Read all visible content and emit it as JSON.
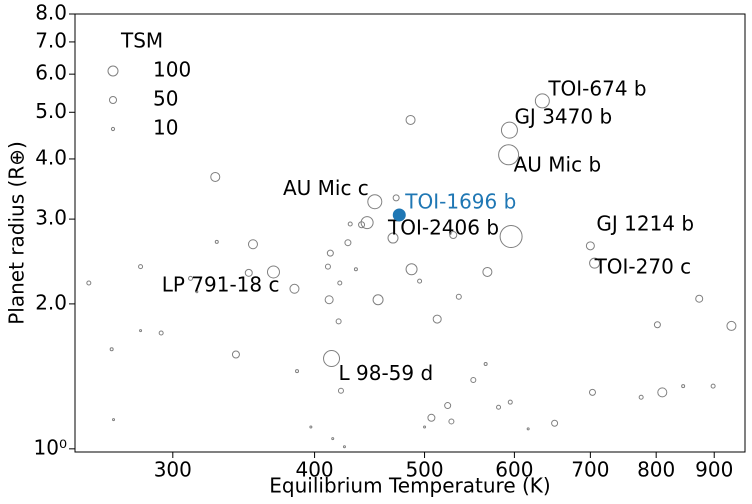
{
  "chart_data": {
    "type": "scatter",
    "x_label": "Equilibrium Temperature (K)",
    "y_label": "Planet radius (R⊕)",
    "log_x": true,
    "log_y": true,
    "grid": false,
    "xlim": [
      246,
      958
    ],
    "ylim": [
      0.985,
      8.0
    ],
    "xticks": [
      300,
      400,
      500,
      600,
      700,
      800,
      900
    ],
    "yticks": [
      {
        "value": 1,
        "label": "10⁰"
      },
      {
        "value": 2,
        "label": "2.0"
      },
      {
        "value": 3,
        "label": "3.0"
      },
      {
        "value": 4,
        "label": "4.0"
      },
      {
        "value": 5,
        "label": "5.0"
      },
      {
        "value": 6,
        "label": "6.0"
      },
      {
        "value": 7,
        "label": "7.0"
      },
      {
        "value": 8,
        "label": "8.0"
      }
    ],
    "edgecolor": "#808080",
    "x": [
      253,
      265,
      266,
      281,
      281,
      293,
      311,
      315,
      327,
      328,
      341,
      350,
      353,
      368,
      384,
      386,
      397,
      411,
      412,
      413,
      414,
      415,
      420,
      421,
      422,
      425,
      428,
      430,
      435,
      440,
      445,
      452,
      455,
      469,
      472,
      486,
      487,
      495,
      500,
      507,
      513,
      524,
      528,
      530,
      536,
      552,
      566,
      568,
      581,
      594,
      593,
      595,
      596,
      617,
      635,
      651,
      700,
      703,
      706,
      776,
      802,
      810,
      845,
      873,
      898,
      932
    ],
    "y": [
      2.21,
      1.61,
      1.15,
      2.39,
      1.76,
      1.74,
      2.26,
      2.12,
      3.67,
      2.69,
      1.57,
      2.32,
      2.66,
      2.33,
      2.15,
      1.45,
      1.11,
      2.39,
      2.04,
      2.55,
      1.54,
      1.05,
      1.84,
      2.21,
      1.32,
      1.01,
      2.68,
      2.93,
      2.36,
      2.92,
      2.95,
      3.26,
      2.04,
      2.74,
      3.32,
      4.82,
      2.36,
      2.23,
      1.11,
      1.16,
      1.86,
      1.23,
      1.14,
      2.78,
      2.07,
      1.39,
      1.5,
      2.33,
      1.22,
      4.59,
      4.08,
      1.25,
      2.76,
      1.1,
      5.28,
      1.13,
      2.64,
      1.31,
      2.43,
      1.28,
      1.81,
      1.31,
      1.35,
      2.05,
      1.35,
      1.8
    ],
    "sizes": [
      16,
      9,
      4,
      16,
      4,
      16,
      16,
      4,
      81,
      9,
      49,
      49,
      81,
      144,
      81,
      9,
      4,
      25,
      64,
      36,
      256,
      4,
      25,
      16,
      25,
      4,
      36,
      16,
      9,
      36,
      144,
      196,
      100,
      100,
      36,
      81,
      121,
      16,
      4,
      49,
      64,
      36,
      25,
      49,
      25,
      25,
      9,
      81,
      16,
      256,
      400,
      16,
      484,
      4,
      196,
      36,
      64,
      36,
      100,
      16,
      36,
      81,
      9,
      49,
      16,
      81
    ],
    "labels": [
      null,
      null,
      null,
      null,
      null,
      null,
      null,
      null,
      null,
      null,
      null,
      null,
      null,
      "LP 791-18 c",
      null,
      null,
      null,
      null,
      null,
      null,
      "L 98-59 d",
      null,
      null,
      null,
      null,
      null,
      null,
      null,
      null,
      null,
      null,
      "AU Mic c",
      null,
      "TOI-2406 b",
      null,
      null,
      null,
      null,
      null,
      null,
      null,
      null,
      null,
      null,
      null,
      null,
      null,
      null,
      null,
      "GJ 3470 b",
      "AU Mic b",
      null,
      null,
      null,
      "TOI-674 b",
      null,
      "GJ 1214 b",
      null,
      "TOI-270 c",
      null,
      null,
      null,
      null,
      null,
      null,
      null
    ],
    "highlight": {
      "x": 475,
      "y": 3.06,
      "size": 144,
      "label": "TOI-1696 b",
      "color": "#1f77b4"
    },
    "size_legend": {
      "title": "TSM",
      "sizes": [
        100,
        50,
        10
      ]
    }
  }
}
